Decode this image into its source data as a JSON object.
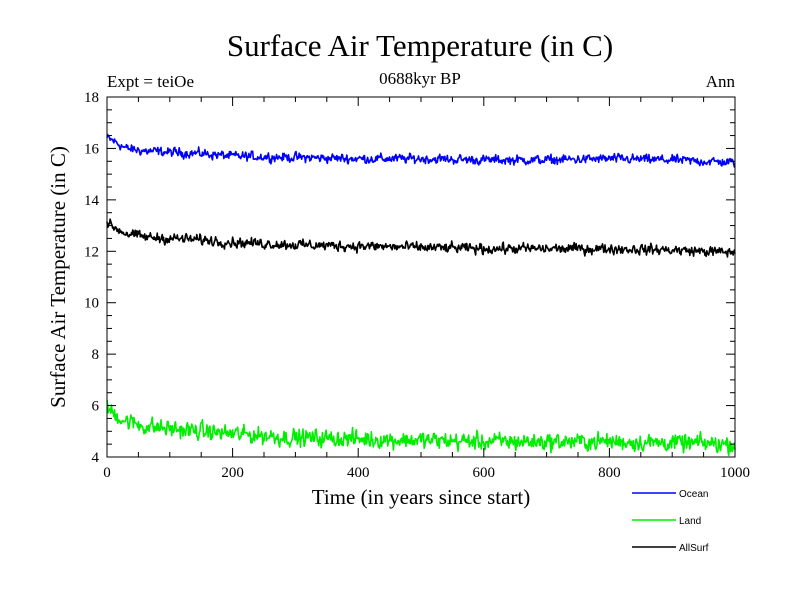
{
  "chart_data": {
    "type": "line",
    "title": "Surface Air Temperature (in C)",
    "subtitle": "0688kyr BP",
    "annotation_left": "Expt = teiOe",
    "annotation_right": "Ann",
    "xlabel": "Time (in years since start)",
    "ylabel": "Surface Air Temperature (in C)",
    "xlim": [
      0,
      1000
    ],
    "ylim": [
      4,
      18
    ],
    "x_ticks": [
      0,
      200,
      400,
      600,
      800,
      1000
    ],
    "y_ticks": [
      4,
      6,
      8,
      10,
      12,
      14,
      16,
      18
    ],
    "grid": false,
    "legend_position": "bottom-right",
    "series": [
      {
        "name": "Ocean",
        "color": "#0000ff",
        "x": [
          0,
          10,
          30,
          60,
          100,
          150,
          200,
          300,
          400,
          500,
          600,
          700,
          800,
          900,
          1000
        ],
        "values": [
          16.4,
          16.3,
          16.0,
          15.9,
          15.85,
          15.8,
          15.7,
          15.65,
          15.6,
          15.6,
          15.55,
          15.55,
          15.6,
          15.55,
          15.45
        ],
        "noise": 0.12
      },
      {
        "name": "Land",
        "color": "#00ee00",
        "x": [
          0,
          10,
          30,
          60,
          100,
          150,
          200,
          300,
          400,
          500,
          600,
          700,
          800,
          900,
          1000
        ],
        "values": [
          5.9,
          5.7,
          5.4,
          5.2,
          5.1,
          5.0,
          4.9,
          4.75,
          4.7,
          4.65,
          4.6,
          4.6,
          4.6,
          4.55,
          4.5
        ],
        "noise": 0.22
      },
      {
        "name": "AllSurf",
        "color": "#000000",
        "x": [
          0,
          10,
          30,
          60,
          100,
          150,
          200,
          300,
          400,
          500,
          600,
          700,
          800,
          900,
          1000
        ],
        "values": [
          13.1,
          12.95,
          12.7,
          12.55,
          12.5,
          12.45,
          12.35,
          12.25,
          12.2,
          12.15,
          12.1,
          12.1,
          12.1,
          12.05,
          11.95
        ],
        "noise": 0.13
      }
    ]
  }
}
